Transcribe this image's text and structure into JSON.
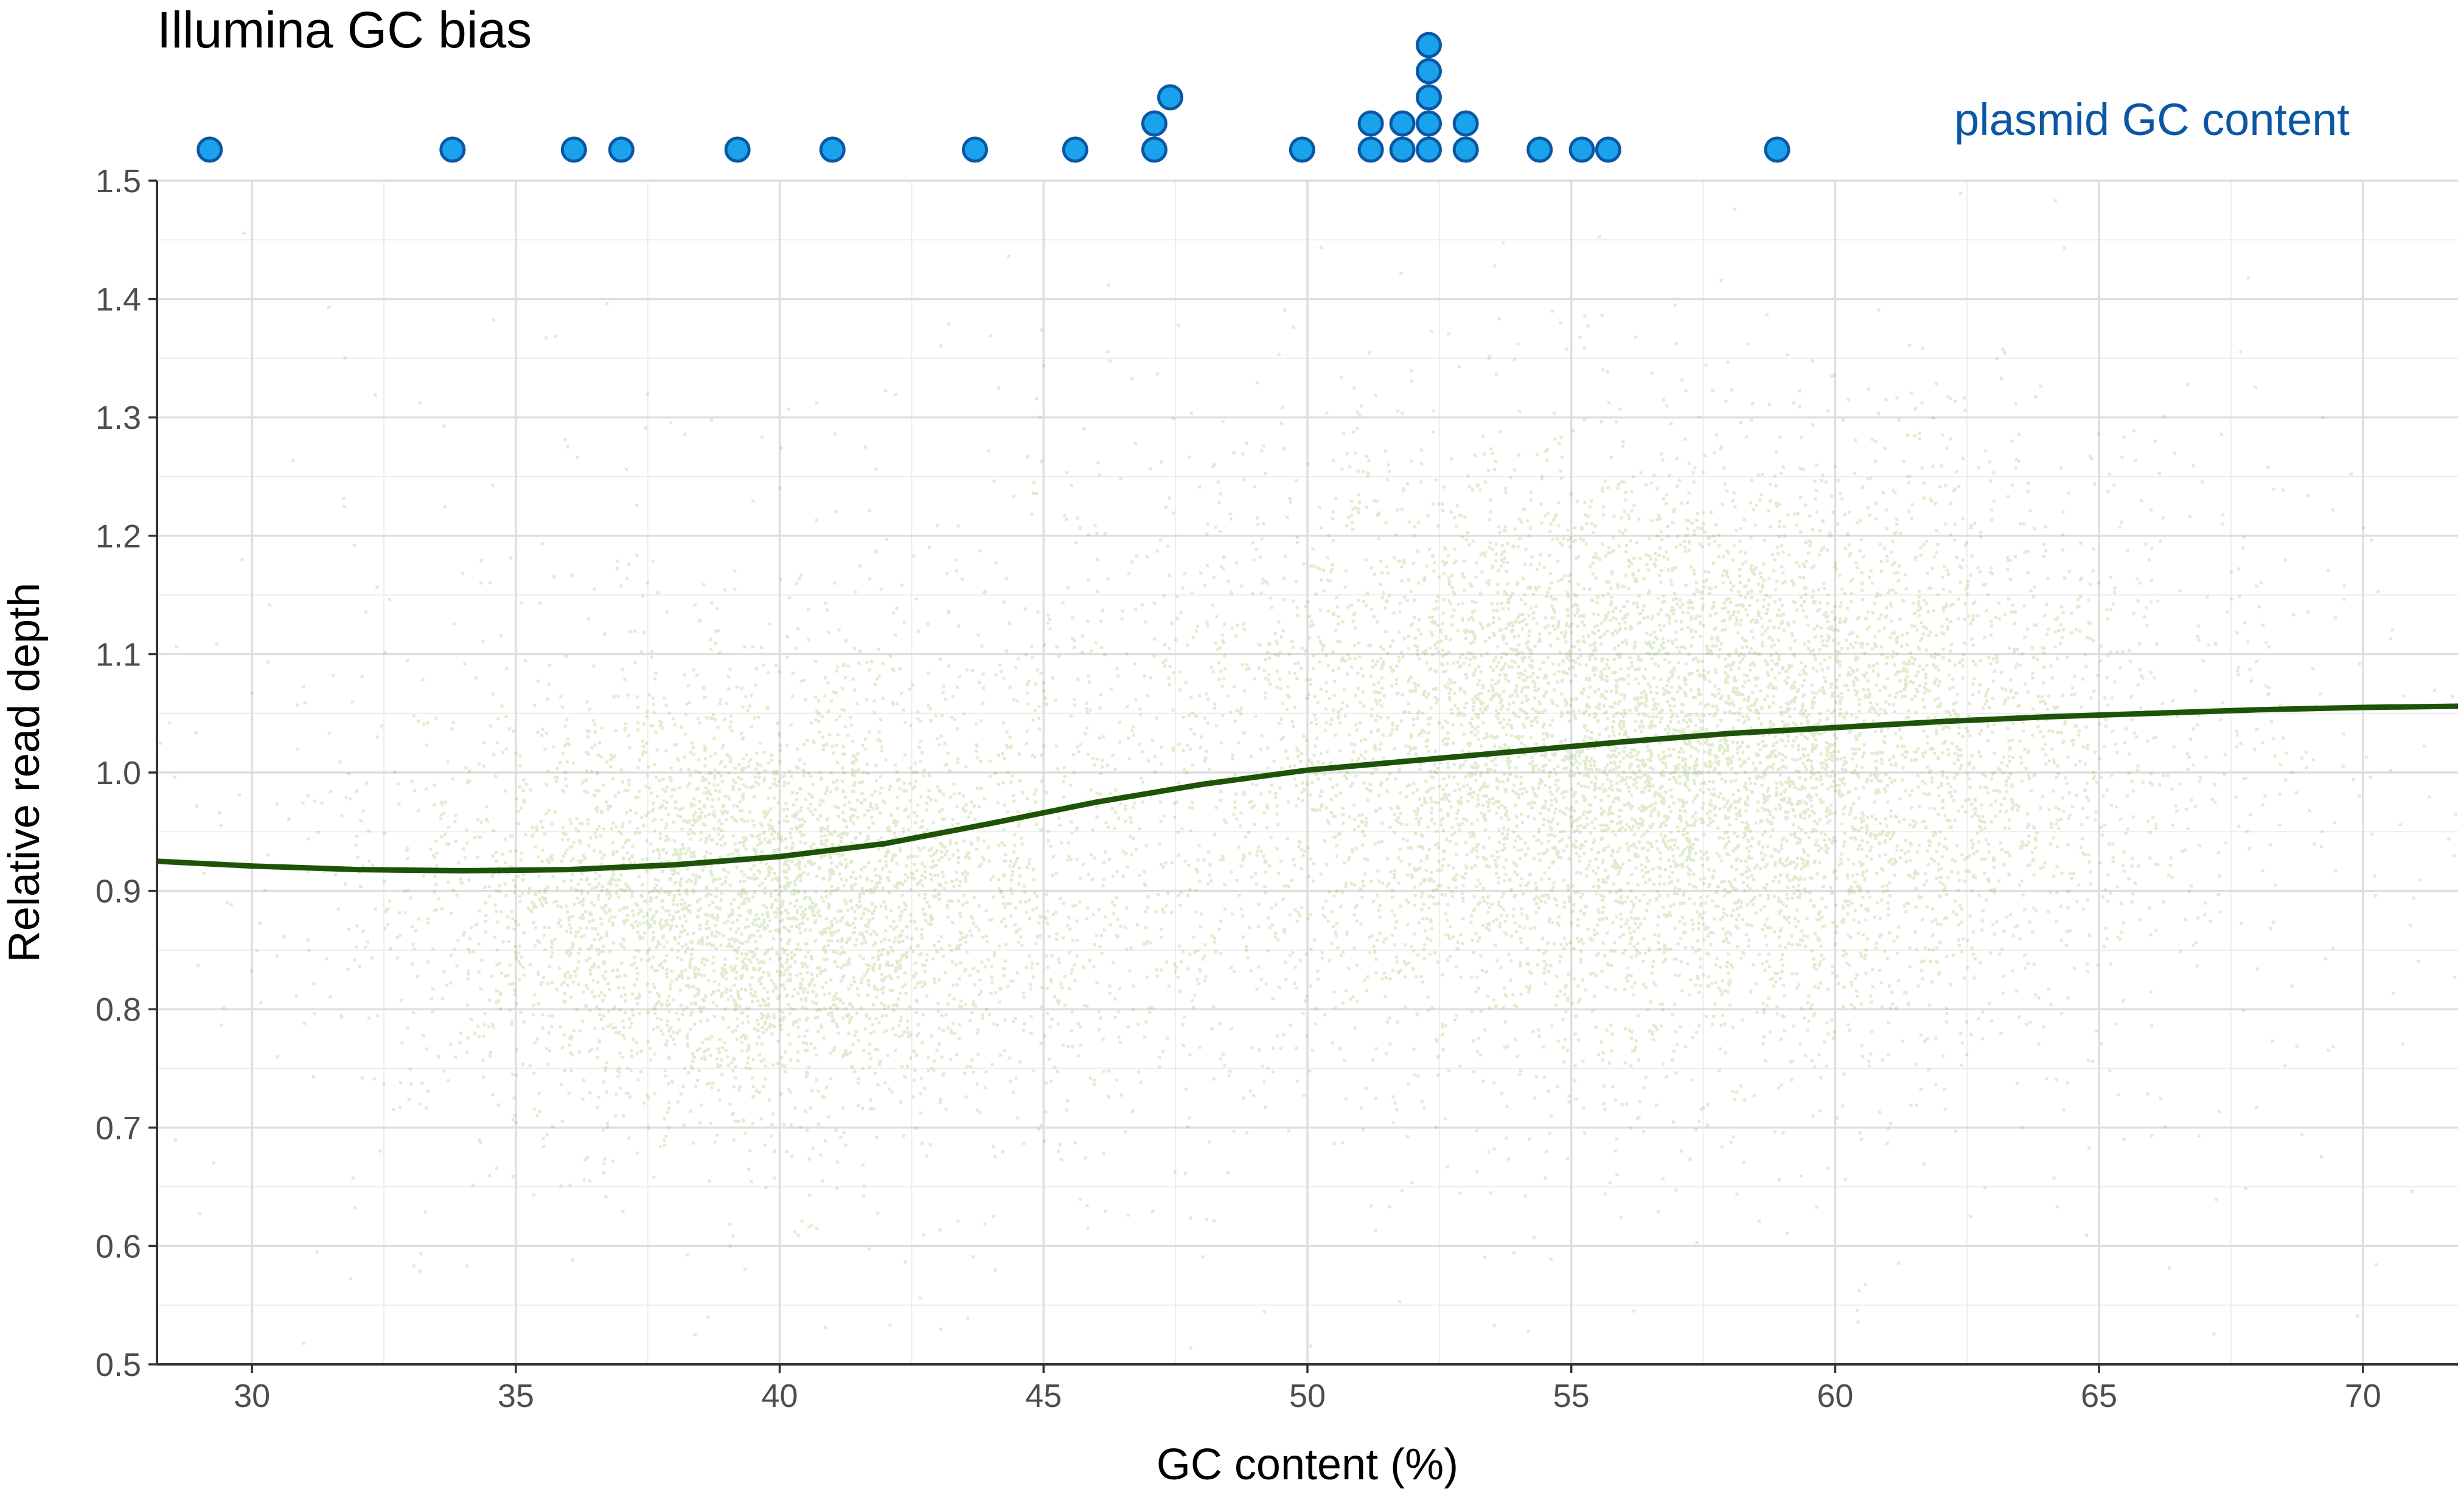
{
  "chart_data": {
    "type": "scatter",
    "title": "Illumina GC bias",
    "xlabel": "GC content (%)",
    "ylabel": "Relative read depth",
    "xlim": [
      28.2,
      71.8
    ],
    "ylim": [
      0.5,
      1.5
    ],
    "xticks": [
      "30",
      "35",
      "40",
      "45",
      "50",
      "55",
      "60",
      "65",
      "70"
    ],
    "yticks": [
      "0.5",
      "0.6",
      "0.7",
      "0.8",
      "0.9",
      "1.0",
      "1.1",
      "1.2",
      "1.3",
      "1.4",
      "1.5"
    ],
    "grid": true,
    "point_color": "#6b9e10",
    "curve_color": "#1e5209",
    "plasmid_color": "#1aa3ec",
    "plasmid_edge_color": "#0b57a4",
    "plasmid_label_color": "#0b57a4",
    "point_clusters": [
      {
        "gc_mean": 39.5,
        "gc_sd": 3.2,
        "depth_mean": 0.89,
        "depth_sd": 0.09,
        "weight": 0.3
      },
      {
        "gc_mean": 57.0,
        "gc_sd": 4.5,
        "depth_mean": 1.02,
        "depth_sd": 0.12,
        "weight": 0.55
      },
      {
        "gc_mean": 50.0,
        "gc_sd": 10.0,
        "depth_mean": 0.98,
        "depth_sd": 0.18,
        "weight": 0.15
      }
    ],
    "trend_curve": {
      "x": [
        28.2,
        30,
        32,
        34,
        36,
        38,
        40,
        42,
        44,
        46,
        48,
        50,
        52,
        54,
        56,
        58,
        60,
        62,
        64,
        66,
        68,
        70,
        71.8
      ],
      "y": [
        0.925,
        0.921,
        0.918,
        0.917,
        0.918,
        0.922,
        0.929,
        0.94,
        0.957,
        0.975,
        0.99,
        1.002,
        1.01,
        1.018,
        1.026,
        1.033,
        1.038,
        1.043,
        1.047,
        1.05,
        1.053,
        1.055,
        1.056
      ]
    },
    "plasmid_gc_label": "plasmid GC content",
    "plasmid_gc_content": [
      29.2,
      33.8,
      36.1,
      37.0,
      39.2,
      41.0,
      43.7,
      45.6,
      47.1,
      47.1,
      47.4,
      49.9,
      51.2,
      51.2,
      51.8,
      51.8,
      52.3,
      52.3,
      52.3,
      52.3,
      52.3,
      53.0,
      53.0,
      54.4,
      55.2,
      55.7,
      58.9
    ]
  }
}
